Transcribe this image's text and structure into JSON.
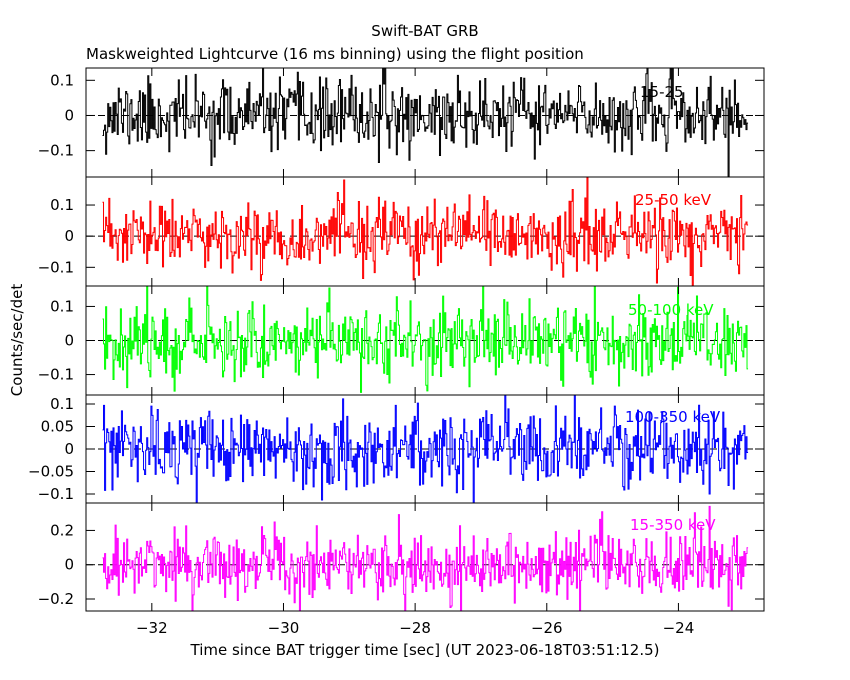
{
  "chart_data": {
    "type": "line",
    "title": "Swift-BAT GRB",
    "subtitle": "Maskweighted Lightcurve (16 ms binning) using the flight position",
    "xlabel": "Time since BAT trigger time [sec] (UT 2023-06-18T03:51:12.5)",
    "ylabel": "Counts/sec/det",
    "xlim": [
      -33.0,
      -22.7
    ],
    "x_range_data": [
      -32.75,
      -22.95
    ],
    "bin_width": 0.016,
    "x_ticks": [
      -32,
      -30,
      -28,
      -26,
      -24
    ],
    "x_tick_labels": [
      "−32",
      "−30",
      "−28",
      "−26",
      "−24"
    ],
    "grid": false,
    "zero_line": "dashed",
    "panels": [
      {
        "label": "15-25",
        "color": "#000000",
        "ylim": [
          -0.175,
          0.135
        ],
        "y_ticks": [
          -0.1,
          0,
          0.1
        ],
        "y_tick_labels": [
          "−0.1",
          "0",
          "0.1"
        ],
        "noise_sigma": 0.05,
        "seed": 11
      },
      {
        "label": "25-50 keV",
        "color": "#ff0000",
        "ylim": [
          -0.16,
          0.19
        ],
        "y_ticks": [
          -0.1,
          0,
          0.1
        ],
        "y_tick_labels": [
          "−0.1",
          "0",
          "0.1"
        ],
        "noise_sigma": 0.055,
        "seed": 23
      },
      {
        "label": "50-100 keV",
        "color": "#00ff00",
        "ylim": [
          -0.16,
          0.16
        ],
        "y_ticks": [
          -0.1,
          0,
          0.1
        ],
        "y_tick_labels": [
          "−0.1",
          "0",
          "0.1"
        ],
        "noise_sigma": 0.055,
        "seed": 37
      },
      {
        "label": "100-350 keV",
        "color": "#0000ff",
        "ylim": [
          -0.12,
          0.12
        ],
        "y_ticks": [
          -0.1,
          -0.05,
          0,
          0.05,
          0.1
        ],
        "y_tick_labels": [
          "−0.1",
          "−0.05",
          "0",
          "0.05",
          "0.1"
        ],
        "noise_sigma": 0.042,
        "seed": 53
      },
      {
        "label": "15-350 keV",
        "color": "#ff00ff",
        "ylim": [
          -0.27,
          0.36
        ],
        "y_ticks": [
          -0.2,
          0,
          0.2
        ],
        "y_tick_labels": [
          "−0.2",
          "0",
          "0.2"
        ],
        "noise_sigma": 0.1,
        "seed": 71
      }
    ]
  }
}
